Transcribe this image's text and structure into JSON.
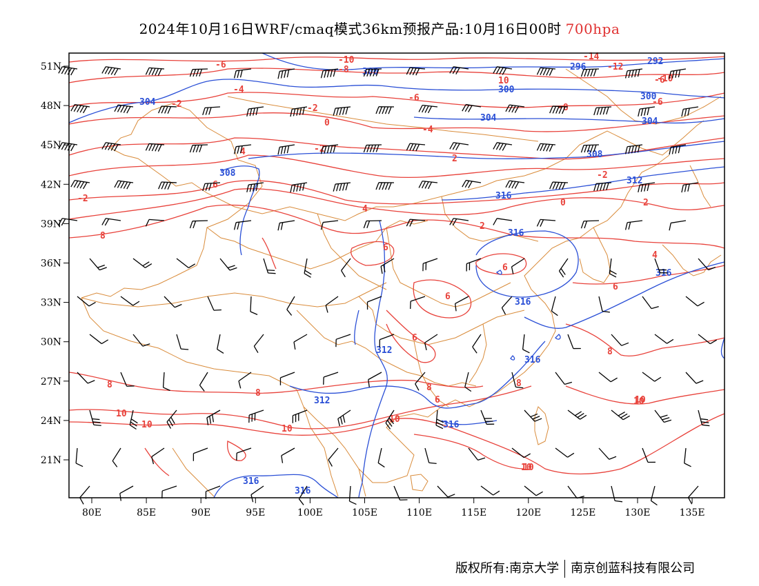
{
  "title": {
    "main": "2024年10月16日WRF/cmaq模式36km预报产品:10月16日00时",
    "level": "700hpa"
  },
  "map": {
    "lon_labels": [
      "80E",
      "85E",
      "90E",
      "95E",
      "100E",
      "105E",
      "110E",
      "115E",
      "120E",
      "125E",
      "130E",
      "135E"
    ],
    "lat_labels": [
      "51N",
      "48N",
      "45N",
      "42N",
      "39N",
      "36N",
      "33N",
      "30N",
      "27N",
      "24N",
      "21N"
    ],
    "colors": {
      "temperature": "#e8413a",
      "geopotential": "#2a4fd6",
      "boundary": "#d98b3a",
      "wind": "#000000"
    },
    "temperature_labels": [
      "-14",
      "-12",
      "-10",
      "-8",
      "-6",
      "-6",
      "-6",
      "-4",
      "-4",
      "-2",
      "-2",
      "-2",
      "-2",
      "0",
      "0",
      "2",
      "2",
      "2",
      "4",
      "4",
      "4",
      "6",
      "6",
      "6",
      "6",
      "6",
      "8",
      "8",
      "8",
      "8",
      "8",
      "8",
      "10",
      "10",
      "10",
      "10",
      "10",
      "10",
      "10",
      "-6",
      "-8",
      "-10",
      "6",
      "6",
      "-2",
      "10",
      "10"
    ],
    "height_labels": [
      "296",
      "300",
      "300",
      "292",
      "300",
      "304",
      "304",
      "304",
      "308",
      "308",
      "312",
      "312",
      "312",
      "316",
      "316",
      "316",
      "316",
      "316",
      "316",
      "316",
      "316"
    ]
  },
  "footer": {
    "left": "版权所有:南京大学",
    "right": "南京创蓝科技有限公司"
  }
}
